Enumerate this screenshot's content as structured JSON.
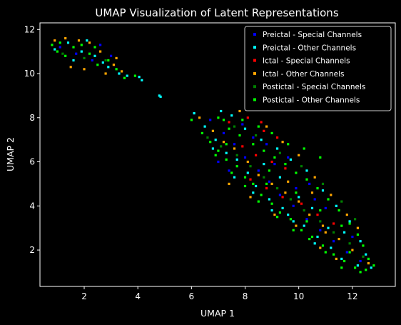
{
  "chart_data": {
    "type": "scatter",
    "title": "UMAP Visualization of Latent Representations",
    "xlabel": "UMAP 1",
    "ylabel": "UMAP 2",
    "xlim": [
      0.35,
      13.6
    ],
    "ylim": [
      0.35,
      12.3
    ],
    "xticks": [
      2,
      4,
      6,
      8,
      10,
      12
    ],
    "yticks": [
      2,
      4,
      6,
      8,
      10,
      12
    ],
    "grid": false,
    "legend_position": "top-right",
    "background": "#000000",
    "foreground": "#ffffff",
    "series": [
      {
        "name": "Preictal - Special Channels",
        "color": "#0000ff",
        "points": [
          [
            1.1,
            11.2
          ],
          [
            1.7,
            10.9
          ],
          [
            2.3,
            10.6
          ],
          [
            3.0,
            10.8
          ],
          [
            2.6,
            11.3
          ],
          [
            6.7,
            7.9
          ],
          [
            7.2,
            7.3
          ],
          [
            7.6,
            6.8
          ],
          [
            8.0,
            6.2
          ],
          [
            8.5,
            5.6
          ],
          [
            8.9,
            5.1
          ],
          [
            9.3,
            4.5
          ],
          [
            9.8,
            4.0
          ],
          [
            10.3,
            3.4
          ],
          [
            10.8,
            2.9
          ],
          [
            11.3,
            2.4
          ],
          [
            11.8,
            1.9
          ],
          [
            7.0,
            6.0
          ],
          [
            7.4,
            5.6
          ],
          [
            8.8,
            6.8
          ],
          [
            9.6,
            6.2
          ],
          [
            10.4,
            5.0
          ],
          [
            11.0,
            3.9
          ],
          [
            12.0,
            2.6
          ],
          [
            12.3,
            1.5
          ],
          [
            7.9,
            7.7
          ],
          [
            8.3,
            7.1
          ],
          [
            9.1,
            5.9
          ],
          [
            9.9,
            4.8
          ],
          [
            10.6,
            4.3
          ]
        ]
      },
      {
        "name": "Preictal - Other Channels",
        "color": "#00ffff",
        "points": [
          [
            0.9,
            11.1
          ],
          [
            1.4,
            11.4
          ],
          [
            1.9,
            11.0
          ],
          [
            2.4,
            10.8
          ],
          [
            2.9,
            10.3
          ],
          [
            3.3,
            10.0
          ],
          [
            1.6,
            10.6
          ],
          [
            2.1,
            11.5
          ],
          [
            2.7,
            10.5
          ],
          [
            3.6,
            9.9
          ],
          [
            6.1,
            8.2
          ],
          [
            6.5,
            7.6
          ],
          [
            6.9,
            7.0
          ],
          [
            7.3,
            6.4
          ],
          [
            7.7,
            6.1
          ],
          [
            8.1,
            5.5
          ],
          [
            8.4,
            4.9
          ],
          [
            8.9,
            4.3
          ],
          [
            9.4,
            3.9
          ],
          [
            9.8,
            3.3
          ],
          [
            10.2,
            3.1
          ],
          [
            10.7,
            2.6
          ],
          [
            11.2,
            2.1
          ],
          [
            11.6,
            1.6
          ],
          [
            12.2,
            1.3
          ],
          [
            12.7,
            1.2
          ],
          [
            7.1,
            8.3
          ],
          [
            7.5,
            8.1
          ],
          [
            8.0,
            7.5
          ],
          [
            8.6,
            7.0
          ],
          [
            9.2,
            6.6
          ],
          [
            9.7,
            6.1
          ],
          [
            10.3,
            5.6
          ],
          [
            10.9,
            4.7
          ],
          [
            11.4,
            4.0
          ],
          [
            11.9,
            3.3
          ],
          [
            12.3,
            2.4
          ],
          [
            12.5,
            1.8
          ],
          [
            6.8,
            6.6
          ],
          [
            7.6,
            5.3
          ],
          [
            8.3,
            4.6
          ],
          [
            9.0,
            3.8
          ],
          [
            9.6,
            3.6
          ],
          [
            10.5,
            3.9
          ],
          [
            11.1,
            3.0
          ],
          [
            11.7,
            2.8
          ],
          [
            8.7,
            5.9
          ],
          [
            9.3,
            5.3
          ],
          [
            10.0,
            4.4
          ],
          [
            10.6,
            2.3
          ]
        ]
      },
      {
        "name": "Ictal - Special Channels",
        "color": "#ff0000",
        "points": [
          [
            7.4,
            7.8
          ],
          [
            8.1,
            8.0
          ],
          [
            8.7,
            7.4
          ],
          [
            9.2,
            7.1
          ],
          [
            7.9,
            6.7
          ],
          [
            8.4,
            6.3
          ],
          [
            9.0,
            6.0
          ],
          [
            9.5,
            5.7
          ],
          [
            8.2,
            5.2
          ],
          [
            8.8,
            4.8
          ],
          [
            9.4,
            4.4
          ],
          [
            10.1,
            4.1
          ],
          [
            10.7,
            3.6
          ],
          [
            11.3,
            3.2
          ],
          [
            8.6,
            7.8
          ]
        ]
      },
      {
        "name": "Ictal - Other Channels",
        "color": "#ffa500",
        "points": [
          [
            0.9,
            11.5
          ],
          [
            1.3,
            11.6
          ],
          [
            1.8,
            11.5
          ],
          [
            2.2,
            11.4
          ],
          [
            2.6,
            11.0
          ],
          [
            3.1,
            10.4
          ],
          [
            3.4,
            10.1
          ],
          [
            1.5,
            10.3
          ],
          [
            2.0,
            10.2
          ],
          [
            2.8,
            10.0
          ],
          [
            3.2,
            10.7
          ],
          [
            6.3,
            8.0
          ],
          [
            6.8,
            7.4
          ],
          [
            7.2,
            6.9
          ],
          [
            7.6,
            6.6
          ],
          [
            8.1,
            6.0
          ],
          [
            8.5,
            5.4
          ],
          [
            9.0,
            5.0
          ],
          [
            9.5,
            4.6
          ],
          [
            10.0,
            4.2
          ],
          [
            10.4,
            3.6
          ],
          [
            10.9,
            3.1
          ],
          [
            11.5,
            2.5
          ],
          [
            12.0,
            2.0
          ],
          [
            12.6,
            1.4
          ],
          [
            8.8,
            7.6
          ],
          [
            9.4,
            6.9
          ],
          [
            10.0,
            6.3
          ],
          [
            10.6,
            5.3
          ],
          [
            11.2,
            4.5
          ],
          [
            11.8,
            3.6
          ],
          [
            12.2,
            3.0
          ],
          [
            7.4,
            5.0
          ],
          [
            8.2,
            4.4
          ],
          [
            9.1,
            3.6
          ],
          [
            9.9,
            3.1
          ],
          [
            10.8,
            2.1
          ],
          [
            11.4,
            1.6
          ],
          [
            9.6,
            5.1
          ],
          [
            10.5,
            4.6
          ],
          [
            11.0,
            2.8
          ],
          [
            7.8,
            8.3
          ]
        ]
      },
      {
        "name": "Postictal - Special Channels",
        "color": "#008000",
        "points": [
          [
            1.2,
            10.9
          ],
          [
            2.0,
            10.7
          ],
          [
            2.8,
            10.6
          ],
          [
            6.6,
            7.1
          ],
          [
            7.1,
            6.7
          ],
          [
            7.7,
            6.3
          ],
          [
            8.2,
            5.8
          ],
          [
            8.7,
            5.3
          ],
          [
            9.2,
            4.8
          ],
          [
            9.7,
            4.3
          ],
          [
            10.2,
            3.8
          ],
          [
            10.8,
            3.3
          ],
          [
            11.3,
            2.8
          ],
          [
            11.9,
            2.3
          ],
          [
            12.4,
            1.7
          ],
          [
            7.6,
            7.6
          ],
          [
            8.4,
            7.2
          ],
          [
            9.3,
            6.4
          ],
          [
            10.1,
            5.8
          ],
          [
            10.9,
            5.0
          ],
          [
            11.6,
            4.2
          ],
          [
            12.1,
            3.4
          ]
        ]
      },
      {
        "name": "Postictal - Other Channels",
        "color": "#00ff00",
        "points": [
          [
            0.8,
            11.3
          ],
          [
            1.0,
            11.0
          ],
          [
            1.3,
            10.8
          ],
          [
            1.6,
            11.2
          ],
          [
            1.9,
            11.3
          ],
          [
            2.2,
            10.9
          ],
          [
            2.5,
            10.4
          ],
          [
            2.9,
            10.6
          ],
          [
            3.2,
            10.2
          ],
          [
            3.5,
            9.8
          ],
          [
            3.9,
            9.9
          ],
          [
            1.1,
            11.4
          ],
          [
            2.4,
            11.2
          ],
          [
            6.0,
            7.9
          ],
          [
            6.4,
            7.3
          ],
          [
            6.7,
            6.9
          ],
          [
            7.0,
            6.5
          ],
          [
            7.3,
            6.1
          ],
          [
            7.7,
            5.8
          ],
          [
            8.0,
            5.3
          ],
          [
            8.3,
            5.0
          ],
          [
            8.6,
            4.5
          ],
          [
            9.0,
            4.1
          ],
          [
            9.3,
            3.7
          ],
          [
            9.7,
            3.4
          ],
          [
            10.1,
            2.9
          ],
          [
            10.5,
            2.6
          ],
          [
            10.9,
            2.2
          ],
          [
            11.3,
            1.8
          ],
          [
            11.7,
            1.5
          ],
          [
            12.1,
            1.2
          ],
          [
            12.5,
            1.1
          ],
          [
            12.8,
            1.3
          ],
          [
            7.0,
            8.0
          ],
          [
            7.4,
            7.5
          ],
          [
            7.8,
            7.2
          ],
          [
            8.3,
            6.8
          ],
          [
            8.7,
            6.5
          ],
          [
            9.1,
            6.2
          ],
          [
            9.5,
            5.9
          ],
          [
            9.9,
            5.5
          ],
          [
            10.3,
            5.2
          ],
          [
            10.7,
            4.8
          ],
          [
            11.1,
            4.3
          ],
          [
            11.5,
            3.8
          ],
          [
            11.9,
            3.2
          ],
          [
            12.2,
            2.7
          ],
          [
            12.4,
            2.2
          ],
          [
            12.6,
            1.6
          ],
          [
            7.2,
            7.9
          ],
          [
            7.9,
            7.9
          ],
          [
            8.5,
            7.6
          ],
          [
            9.0,
            7.3
          ],
          [
            9.6,
            6.8
          ],
          [
            10.2,
            6.6
          ],
          [
            10.8,
            6.2
          ],
          [
            6.9,
            6.3
          ],
          [
            7.5,
            5.5
          ],
          [
            8.0,
            4.9
          ],
          [
            8.5,
            4.2
          ],
          [
            9.2,
            3.5
          ],
          [
            9.8,
            2.9
          ],
          [
            10.4,
            2.5
          ],
          [
            11.0,
            1.9
          ],
          [
            11.6,
            1.2
          ],
          [
            12.3,
            1.0
          ],
          [
            8.9,
            5.6
          ],
          [
            9.9,
            4.6
          ],
          [
            10.8,
            3.8
          ],
          [
            11.6,
            3.1
          ],
          [
            7.3,
            6.8
          ],
          [
            8.8,
            5.0
          ],
          [
            10.3,
            3.3
          ],
          [
            11.9,
            1.9
          ]
        ]
      }
    ],
    "outlier_points": [
      [
        4.8,
        9.0
      ],
      [
        4.85,
        8.95
      ],
      [
        4.05,
        9.85
      ],
      [
        4.15,
        9.7
      ]
    ]
  }
}
